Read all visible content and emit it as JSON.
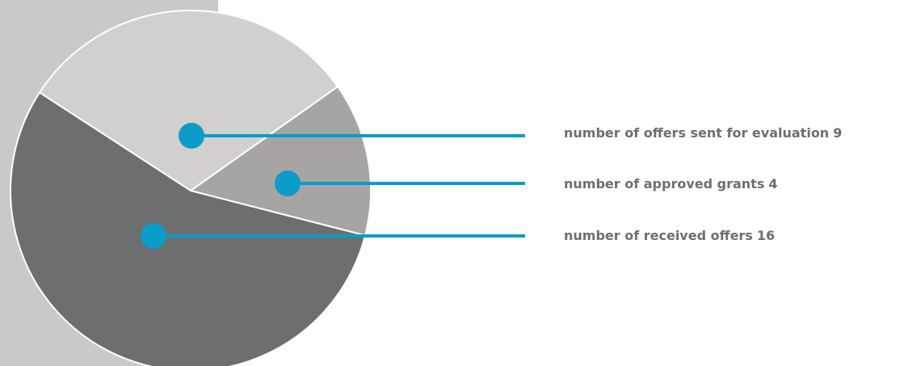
{
  "chart_data": {
    "type": "pie",
    "categories": [
      "number of offers sent for evaluation",
      "number of approved grants",
      "number of received offers"
    ],
    "values": [
      9,
      4,
      16
    ],
    "colors": [
      "#d1d0ce",
      "#a7a4a4",
      "#6d6e70"
    ],
    "leader_color": "#0b9cc9"
  }
}
